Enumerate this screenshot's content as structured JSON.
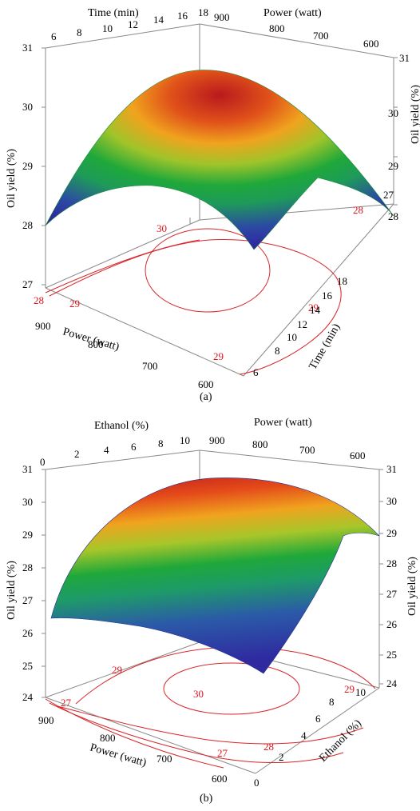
{
  "chart_data": [
    {
      "type": "surface",
      "caption": "(a)",
      "zlabel": "Oil yield (%)",
      "zticks": [
        27,
        28,
        29,
        30,
        31
      ],
      "axes": {
        "time": {
          "label": "Time (min)",
          "ticks": [
            6,
            8,
            10,
            12,
            14,
            16,
            18
          ],
          "range": [
            6,
            18
          ]
        },
        "power": {
          "label": "Power (watt)",
          "ticks": [
            900,
            800,
            700,
            600
          ],
          "range": [
            550,
            950
          ]
        }
      },
      "zrange": [
        27,
        31
      ],
      "surface_corners": {
        "max_time_max_power": 28.2,
        "min_time_min_power": 28.0,
        "max_time_min_power": 27.7,
        "min_time_max_power": 27.9,
        "peak": 30.6
      },
      "contour_labels": [
        "30",
        "28",
        "29",
        "29",
        "29",
        "28"
      ],
      "colormap": [
        "#2f2aa0",
        "#1fa83a",
        "#f0a31e",
        "#b9191d"
      ]
    },
    {
      "type": "surface",
      "caption": "(b)",
      "zlabel": "Oil yield (%)",
      "zticks": [
        24,
        25,
        26,
        27,
        28,
        29,
        30,
        31
      ],
      "axes": {
        "ethanol": {
          "label": "Ethanol (%)",
          "ticks": [
            0,
            2,
            4,
            6,
            8,
            10
          ],
          "range": [
            0,
            10
          ]
        },
        "power": {
          "label": "Power (watt)",
          "ticks": [
            900,
            800,
            700,
            600
          ],
          "range": [
            550,
            950
          ]
        }
      },
      "zrange": [
        24,
        31
      ],
      "surface_corners": {
        "max_ethanol_max_power": 30.4,
        "min_ethanol_max_power": 26.5,
        "min_ethanol_min_power": 24.3,
        "max_ethanol_min_power": 28.9,
        "peak": 30.7
      },
      "contour_labels": [
        "29",
        "27",
        "30",
        "29",
        "28",
        "27"
      ],
      "colormap": [
        "#2f2aa0",
        "#1fa83a",
        "#f0a31e",
        "#b9191d"
      ]
    }
  ]
}
